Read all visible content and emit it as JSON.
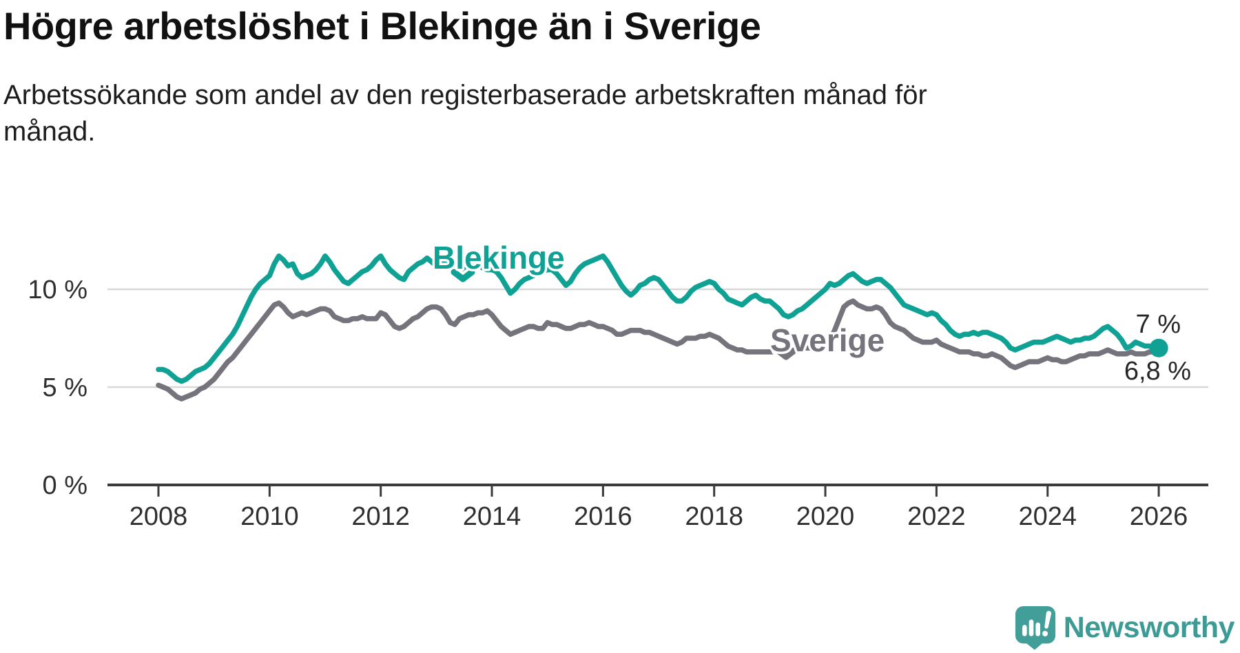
{
  "header": {
    "title": "Högre arbetslöshet i Blekinge än i Sverige",
    "subtitle": "Arbetssökande som andel av den registerbaserade arbetskraften månad för månad."
  },
  "chart_data": {
    "type": "line",
    "title": "Högre arbetslöshet i Blekinge än i Sverige",
    "xlabel": "",
    "ylabel": "Arbetssökande som andel av den registerbaserade arbetskraften",
    "x_unit": "year (monthly data)",
    "x_start_year": 2008,
    "x_end_year": 2026,
    "months_per_point": 1,
    "ylim": [
      0,
      12.4
    ],
    "grid": "horizontal",
    "y_axis_ticks": [
      {
        "value": 10,
        "label": "10 %"
      },
      {
        "value": 5,
        "label": "5 %"
      },
      {
        "value": 0,
        "label": "0 %"
      }
    ],
    "x_axis_ticks": [
      {
        "value": 2008,
        "label": "2008"
      },
      {
        "value": 2010,
        "label": "2010"
      },
      {
        "value": 2012,
        "label": "2012"
      },
      {
        "value": 2014,
        "label": "2014"
      },
      {
        "value": 2016,
        "label": "2016"
      },
      {
        "value": 2018,
        "label": "2018"
      },
      {
        "value": 2020,
        "label": "2020"
      },
      {
        "value": 2022,
        "label": "2022"
      },
      {
        "value": 2024,
        "label": "2024"
      },
      {
        "value": 2026,
        "label": "2026"
      }
    ],
    "series": [
      {
        "name": "Sverige",
        "label_text": "Sverige",
        "color": "#75747C",
        "end_annotation": "6,8 %",
        "end_value": 6.8,
        "values": [
          5.1,
          5.0,
          4.9,
          4.7,
          4.5,
          4.4,
          4.5,
          4.6,
          4.7,
          4.9,
          5.0,
          5.2,
          5.4,
          5.7,
          6.0,
          6.3,
          6.5,
          6.8,
          7.1,
          7.4,
          7.7,
          8.0,
          8.3,
          8.6,
          8.9,
          9.2,
          9.3,
          9.1,
          8.8,
          8.6,
          8.7,
          8.8,
          8.7,
          8.8,
          8.9,
          9.0,
          9.0,
          8.9,
          8.6,
          8.5,
          8.4,
          8.4,
          8.5,
          8.5,
          8.6,
          8.5,
          8.5,
          8.5,
          8.8,
          8.7,
          8.4,
          8.1,
          8.0,
          8.1,
          8.3,
          8.5,
          8.6,
          8.8,
          9.0,
          9.1,
          9.1,
          9.0,
          8.7,
          8.3,
          8.2,
          8.5,
          8.6,
          8.7,
          8.7,
          8.8,
          8.8,
          8.9,
          8.7,
          8.4,
          8.1,
          7.9,
          7.7,
          7.8,
          7.9,
          8.0,
          8.1,
          8.1,
          8.0,
          8.0,
          8.3,
          8.2,
          8.2,
          8.1,
          8.0,
          8.0,
          8.1,
          8.2,
          8.2,
          8.3,
          8.2,
          8.1,
          8.1,
          8.0,
          7.9,
          7.7,
          7.7,
          7.8,
          7.9,
          7.9,
          7.9,
          7.8,
          7.8,
          7.7,
          7.6,
          7.5,
          7.4,
          7.3,
          7.2,
          7.3,
          7.5,
          7.5,
          7.5,
          7.6,
          7.6,
          7.7,
          7.6,
          7.5,
          7.3,
          7.1,
          7.0,
          6.9,
          6.9,
          6.8,
          6.8,
          6.8,
          6.8,
          6.8,
          6.8,
          6.8,
          6.9,
          6.8,
          6.7,
          6.8,
          6.9,
          7.0,
          7.0,
          7.0,
          7.1,
          7.1,
          7.2,
          7.4,
          7.9,
          8.5,
          9.1,
          9.3,
          9.4,
          9.2,
          9.1,
          9.0,
          9.0,
          9.1,
          9.0,
          8.7,
          8.3,
          8.1,
          8.0,
          7.9,
          7.7,
          7.5,
          7.4,
          7.3,
          7.3,
          7.3,
          7.4,
          7.2,
          7.1,
          7.0,
          6.9,
          6.8,
          6.8,
          6.8,
          6.7,
          6.7,
          6.6,
          6.6,
          6.7,
          6.6,
          6.5,
          6.3,
          6.1,
          6.0,
          6.1,
          6.2,
          6.3,
          6.3,
          6.3,
          6.4,
          6.5,
          6.4,
          6.4,
          6.3,
          6.3,
          6.4,
          6.5,
          6.6,
          6.6,
          6.7,
          6.7,
          6.7,
          6.8,
          6.9,
          6.8,
          6.7,
          6.7,
          6.7,
          6.8,
          6.7,
          6.7,
          6.7,
          6.8,
          6.8,
          6.8
        ]
      },
      {
        "name": "Blekinge",
        "label_text": "Blekinge",
        "color": "#10A195",
        "end_annotation": "7 %",
        "end_value": 7.0,
        "end_marker": "dot",
        "values": [
          5.9,
          5.9,
          5.8,
          5.6,
          5.4,
          5.3,
          5.4,
          5.6,
          5.8,
          5.9,
          6.0,
          6.2,
          6.5,
          6.8,
          7.1,
          7.4,
          7.7,
          8.1,
          8.6,
          9.1,
          9.6,
          10.0,
          10.3,
          10.5,
          10.7,
          11.3,
          11.7,
          11.5,
          11.2,
          11.3,
          10.8,
          10.6,
          10.7,
          10.8,
          11.0,
          11.3,
          11.7,
          11.4,
          11.0,
          10.7,
          10.4,
          10.3,
          10.5,
          10.7,
          10.9,
          11.0,
          11.2,
          11.5,
          11.7,
          11.3,
          11.0,
          10.8,
          10.6,
          10.5,
          10.9,
          11.1,
          11.3,
          11.4,
          11.6,
          11.4,
          11.2,
          11.4,
          11.5,
          11.3,
          11.0,
          10.9,
          11.1,
          11.2,
          11.3,
          11.2,
          11.1,
          11.0,
          11.0,
          10.9,
          10.6,
          10.2,
          9.8,
          10.0,
          10.3,
          10.5,
          10.6,
          10.7,
          10.8,
          10.9,
          11.0,
          11.0,
          10.8,
          10.5,
          10.2,
          10.4,
          10.8,
          11.1,
          11.3,
          11.4,
          11.5,
          11.6,
          11.7,
          11.4,
          11.0,
          10.6,
          10.2,
          9.9,
          9.7,
          9.9,
          10.2,
          10.3,
          10.5,
          10.6,
          10.5,
          10.2,
          9.9,
          9.6,
          9.4,
          9.4,
          9.6,
          9.9,
          10.1,
          10.2,
          10.3,
          10.4,
          10.3,
          10.0,
          9.8,
          9.5,
          9.4,
          9.3,
          9.2,
          9.4,
          9.6,
          9.7,
          9.5,
          9.4,
          9.4,
          9.2,
          9.0,
          8.7,
          8.6,
          8.7,
          8.9,
          9.0,
          9.2,
          9.4,
          9.6,
          9.8,
          10.0,
          10.3,
          10.2,
          10.3,
          10.5,
          10.7,
          10.8,
          10.6,
          10.4,
          10.3,
          10.4,
          10.5,
          10.5,
          10.3,
          10.1,
          9.8,
          9.5,
          9.2,
          9.1,
          9.0,
          8.9,
          8.8,
          8.7,
          8.8,
          8.7,
          8.4,
          8.2,
          7.9,
          7.7,
          7.6,
          7.7,
          7.7,
          7.8,
          7.7,
          7.8,
          7.8,
          7.7,
          7.6,
          7.5,
          7.3,
          7.0,
          6.9,
          7.0,
          7.1,
          7.2,
          7.3,
          7.3,
          7.3,
          7.4,
          7.5,
          7.6,
          7.5,
          7.4,
          7.3,
          7.4,
          7.4,
          7.5,
          7.5,
          7.6,
          7.8,
          8.0,
          8.1,
          7.9,
          7.7,
          7.4,
          7.0,
          7.1,
          7.3,
          7.2,
          7.1,
          7.1,
          7.0,
          7.0
        ]
      }
    ]
  },
  "colors": {
    "blekinge": "#10A195",
    "sverige": "#75747C",
    "gridline": "#D8D8D8",
    "axis": "#3A3A3A",
    "text": "#2F2F2F"
  },
  "branding": {
    "logo_text": "Newsworthy",
    "logo_color": "#3D9B95",
    "logo_icon": "speech-bubble-bar-chart-icon"
  }
}
